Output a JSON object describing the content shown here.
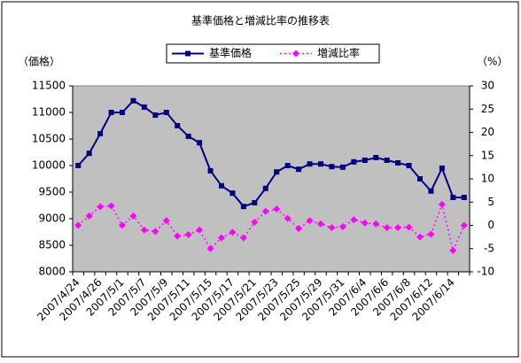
{
  "chart_data": {
    "type": "line",
    "title": "基準価格と増減比率の推移表",
    "ylabel": "（価格）",
    "y2label": "（%）",
    "categories": [
      "2007/4/24",
      null,
      "2007/4/26",
      null,
      "2007/5/1",
      null,
      "2007/5/7",
      null,
      "2007/5/9",
      null,
      "2007/5/11",
      null,
      "2007/5/15",
      null,
      "2007/5/17",
      null,
      "2007/5/21",
      null,
      "2007/5/23",
      null,
      "2007/5/25",
      null,
      "2007/5/29",
      null,
      "2007/5/31",
      null,
      "2007/6/4",
      null,
      "2007/6/6",
      null,
      "2007/6/8",
      null,
      "2007/6/12",
      null,
      "2007/6/14",
      null
    ],
    "series": [
      {
        "name": "基準価格",
        "color": "#000080",
        "marker": "square",
        "line_style": "solid",
        "values": [
          10000,
          10230,
          10600,
          11000,
          11000,
          11220,
          11100,
          10950,
          11000,
          10750,
          10550,
          10430,
          9900,
          9620,
          9480,
          9230,
          9300,
          9570,
          9880,
          10000,
          9930,
          10030,
          10030,
          9980,
          9970,
          10070,
          10100,
          10150,
          10100,
          10050,
          10000,
          9750,
          9520,
          9950,
          9400,
          9400
        ]
      },
      {
        "name": "増減比率",
        "color": "#ff00ff",
        "marker": "diamond",
        "line_style": "dotted",
        "axis": "y2",
        "values": [
          0,
          2,
          4,
          4.2,
          0,
          2,
          -1,
          -1.3,
          1,
          -2.3,
          -2,
          -1,
          -5,
          -2.7,
          -1.5,
          -2.7,
          0.7,
          3,
          3.5,
          1.5,
          -0.7,
          1,
          0.3,
          -0.5,
          -0.3,
          1.2,
          0.5,
          0.3,
          -0.5,
          -0.5,
          -0.4,
          -2.5,
          -1.9,
          4.5,
          -5.4,
          0
        ]
      }
    ],
    "ylim": [
      8000,
      11500
    ],
    "yticks": [
      8000,
      8500,
      9000,
      9500,
      10000,
      10500,
      11000,
      11500
    ],
    "y2lim": [
      -10,
      30
    ],
    "y2ticks": [
      -10,
      -5,
      0,
      5,
      10,
      15,
      20,
      25,
      30
    ],
    "plot_background": "#c0c0c0",
    "grid": false,
    "legend": "top"
  }
}
